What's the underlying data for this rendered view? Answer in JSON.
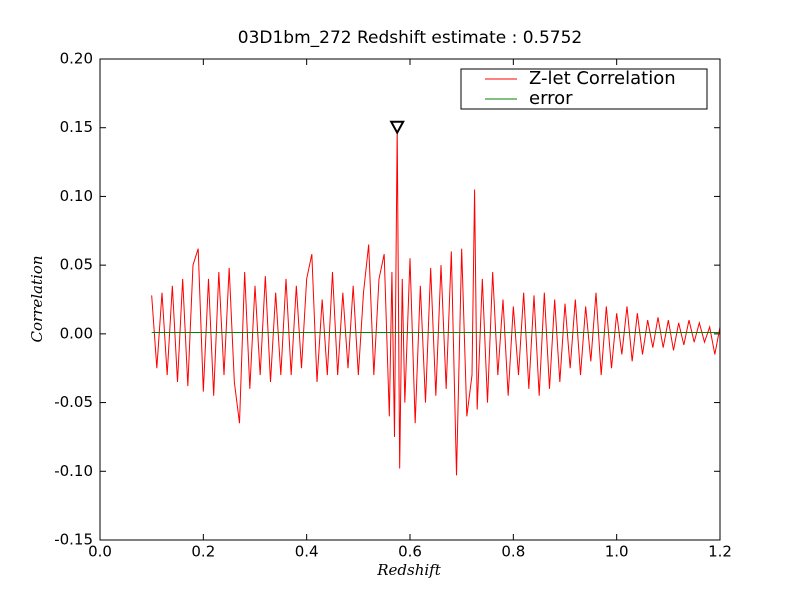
{
  "chart_data": {
    "type": "line",
    "title": "03D1bm_272 Redshift estimate : 0.5752",
    "xlabel": "Redshift",
    "ylabel": "Correlation",
    "xlim": [
      0.0,
      1.2
    ],
    "ylim": [
      -0.15,
      0.2
    ],
    "xticks": [
      {
        "value": 0.0,
        "label": "0.0"
      },
      {
        "value": 0.2,
        "label": "0.2"
      },
      {
        "value": 0.4,
        "label": "0.4"
      },
      {
        "value": 0.6,
        "label": "0.6"
      },
      {
        "value": 0.8,
        "label": "0.8"
      },
      {
        "value": 1.0,
        "label": "1.0"
      },
      {
        "value": 1.2,
        "label": "1.2"
      }
    ],
    "yticks": [
      {
        "value": -0.15,
        "label": "-0.15"
      },
      {
        "value": -0.1,
        "label": "-0.10"
      },
      {
        "value": -0.05,
        "label": "-0.05"
      },
      {
        "value": 0.0,
        "label": "0.00"
      },
      {
        "value": 0.05,
        "label": "0.05"
      },
      {
        "value": 0.1,
        "label": "0.10"
      },
      {
        "value": 0.15,
        "label": "0.15"
      },
      {
        "value": 0.2,
        "label": "0.20"
      }
    ],
    "grid": false,
    "legend": "upper right",
    "peak": {
      "x": 0.5752,
      "y": 0.15
    },
    "series": [
      {
        "name": "Z-let Correlation",
        "color": "#ff0000",
        "x": [
          0.1,
          0.11,
          0.12,
          0.13,
          0.14,
          0.15,
          0.16,
          0.17,
          0.18,
          0.19,
          0.2,
          0.21,
          0.22,
          0.23,
          0.24,
          0.25,
          0.26,
          0.27,
          0.28,
          0.29,
          0.3,
          0.31,
          0.32,
          0.33,
          0.34,
          0.35,
          0.36,
          0.37,
          0.38,
          0.39,
          0.4,
          0.41,
          0.42,
          0.43,
          0.44,
          0.45,
          0.46,
          0.47,
          0.48,
          0.49,
          0.5,
          0.51,
          0.52,
          0.53,
          0.54,
          0.55,
          0.56,
          0.565,
          0.57,
          0.5752,
          0.58,
          0.585,
          0.59,
          0.6,
          0.61,
          0.62,
          0.63,
          0.64,
          0.65,
          0.66,
          0.67,
          0.68,
          0.69,
          0.7,
          0.71,
          0.72,
          0.725,
          0.73,
          0.74,
          0.75,
          0.76,
          0.77,
          0.78,
          0.79,
          0.8,
          0.81,
          0.82,
          0.83,
          0.84,
          0.85,
          0.86,
          0.87,
          0.88,
          0.89,
          0.9,
          0.91,
          0.92,
          0.93,
          0.94,
          0.95,
          0.96,
          0.97,
          0.98,
          0.99,
          1.0,
          1.01,
          1.02,
          1.03,
          1.04,
          1.05,
          1.06,
          1.07,
          1.08,
          1.09,
          1.1,
          1.11,
          1.12,
          1.13,
          1.14,
          1.15,
          1.16,
          1.17,
          1.18,
          1.19,
          1.2
        ],
        "values": [
          0.028,
          -0.025,
          0.03,
          -0.03,
          0.035,
          -0.035,
          0.04,
          -0.038,
          0.05,
          0.062,
          -0.042,
          0.04,
          -0.045,
          0.045,
          -0.03,
          0.048,
          -0.035,
          -0.065,
          0.045,
          -0.04,
          0.035,
          -0.03,
          0.042,
          -0.035,
          0.03,
          -0.03,
          0.04,
          -0.03,
          0.035,
          -0.025,
          0.04,
          0.058,
          -0.035,
          0.025,
          -0.03,
          0.045,
          -0.03,
          0.03,
          -0.025,
          0.035,
          -0.03,
          0.03,
          0.065,
          -0.03,
          0.04,
          0.058,
          -0.06,
          0.045,
          -0.075,
          0.15,
          -0.098,
          0.04,
          -0.05,
          0.055,
          -0.065,
          0.035,
          -0.05,
          0.048,
          -0.045,
          0.05,
          -0.04,
          0.06,
          -0.103,
          0.062,
          -0.06,
          -0.03,
          0.105,
          -0.055,
          0.04,
          -0.05,
          0.045,
          -0.03,
          0.025,
          -0.045,
          0.02,
          -0.03,
          0.03,
          -0.04,
          0.028,
          -0.045,
          0.03,
          -0.04,
          0.025,
          -0.035,
          0.022,
          -0.025,
          0.025,
          -0.03,
          0.02,
          -0.02,
          0.03,
          -0.03,
          0.02,
          -0.025,
          0.015,
          -0.015,
          0.02,
          -0.02,
          0.015,
          -0.015,
          0.01,
          -0.01,
          0.012,
          -0.01,
          0.01,
          -0.012,
          0.008,
          -0.008,
          0.01,
          -0.006,
          0.008,
          -0.006,
          0.005,
          -0.015,
          0.005
        ]
      },
      {
        "name": "error",
        "color": "#008000",
        "x": [
          0.1,
          1.2
        ],
        "values": [
          0.001,
          0.001
        ]
      }
    ]
  }
}
